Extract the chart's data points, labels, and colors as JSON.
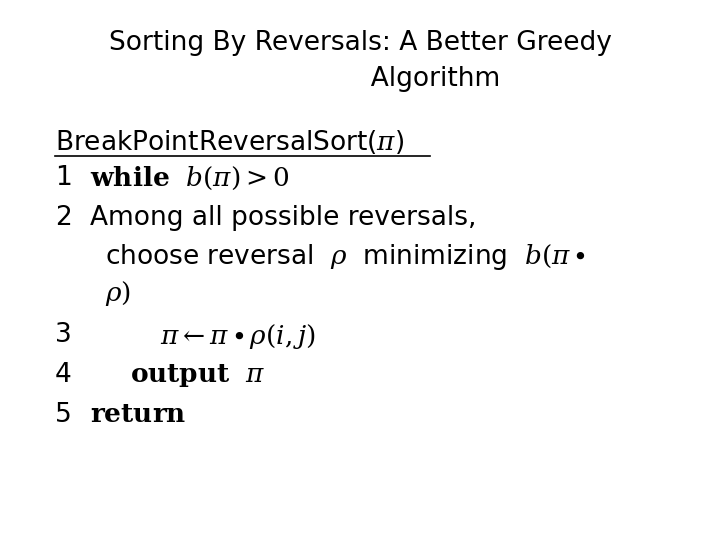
{
  "background_color": "#ffffff",
  "text_color": "#000000",
  "title_fontsize": 19,
  "body_fontsize": 19,
  "figsize": [
    7.2,
    5.4
  ],
  "dpi": 100,
  "title": "Sorting By Reversals: A Better Greedy\nAlgorithm"
}
